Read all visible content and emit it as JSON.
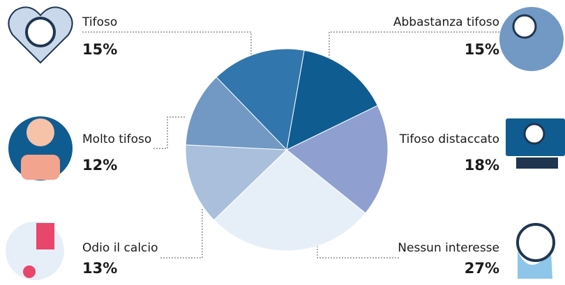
{
  "chart_data": {
    "type": "pie",
    "categories": [
      "Abbastanza tifoso",
      "Tifoso distaccato",
      "Nessun interesse",
      "Odio il calcio",
      "Molto tifoso",
      "Tifoso"
    ],
    "values": [
      15,
      18,
      27,
      13,
      12,
      15
    ],
    "value_labels": [
      "15%",
      "18%",
      "27%",
      "13%",
      "12%",
      "15%"
    ],
    "colors": [
      "#0f5c91",
      "#8e9fd0",
      "#e6eff8",
      "#a9bfdb",
      "#7199c4",
      "#3176ac"
    ]
  }
}
